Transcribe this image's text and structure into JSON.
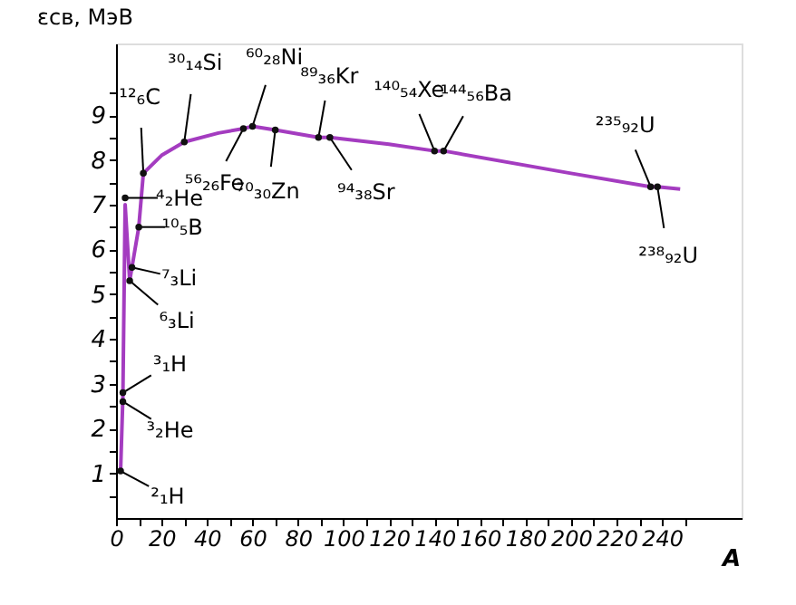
{
  "chart_data": {
    "type": "line",
    "xlabel": "A",
    "ylabel": "εсв, МэВ",
    "xlim": [
      0,
      275
    ],
    "ylim": [
      0,
      10.6
    ],
    "xticks": [
      0,
      20,
      40,
      60,
      80,
      100,
      120,
      140,
      160,
      180,
      200,
      220,
      240,
      {
        "value": 10,
        "label": null
      },
      {
        "value": 30,
        "label": null
      },
      {
        "value": 50,
        "label": null
      },
      {
        "value": 70,
        "label": null
      },
      {
        "value": 90,
        "label": null
      },
      {
        "value": 110,
        "label": null
      },
      {
        "value": 130,
        "label": null
      },
      {
        "value": 150,
        "label": null
      },
      {
        "value": 170,
        "label": null
      },
      {
        "value": 190,
        "label": null
      },
      {
        "value": 210,
        "label": null
      },
      {
        "value": 230,
        "label": null
      },
      {
        "value": 250,
        "label": null
      }
    ],
    "yticks": [
      1,
      2,
      3,
      4,
      5,
      6,
      7,
      8,
      9,
      {
        "value": 0.5,
        "label": null
      },
      {
        "value": 1.5,
        "label": null
      },
      {
        "value": 2.5,
        "label": null
      },
      {
        "value": 3.5,
        "label": null
      },
      {
        "value": 4.5,
        "label": null
      },
      {
        "value": 5.5,
        "label": null
      },
      {
        "value": 6.5,
        "label": null
      },
      {
        "value": 7.5,
        "label": null
      },
      {
        "value": 8.5,
        "label": null
      },
      {
        "value": 9.5,
        "label": null
      }
    ],
    "grid": false,
    "series": [
      {
        "color": "#a43cc0",
        "line_style": "solid",
        "marker": "none",
        "x": [
          2,
          3,
          4,
          6,
          7,
          10,
          12,
          20,
          30,
          45,
          56,
          60,
          70,
          89,
          94,
          120,
          140,
          144,
          200,
          235,
          238,
          248
        ],
        "values": [
          1.05,
          2.7,
          7.0,
          5.3,
          5.6,
          6.5,
          7.7,
          8.1,
          8.4,
          8.6,
          8.7,
          8.75,
          8.67,
          8.5,
          8.5,
          8.35,
          8.2,
          8.2,
          7.7,
          7.4,
          7.4,
          7.35
        ]
      },
      {
        "type": "scatter",
        "color": "#111111",
        "marker": "circle",
        "x": [
          2,
          3,
          3,
          4,
          6,
          7,
          10,
          12,
          30,
          56,
          60,
          70,
          89,
          94,
          140,
          144,
          235,
          238
        ],
        "values": [
          1.05,
          2.8,
          2.6,
          7.15,
          5.3,
          5.6,
          6.5,
          7.7,
          8.4,
          8.7,
          8.75,
          8.67,
          8.5,
          8.5,
          8.2,
          8.2,
          7.4,
          7.4
        ]
      }
    ],
    "annotations": [
      {
        "text": "²₁H",
        "x": 2,
        "y": 1.05
      },
      {
        "text": "³₁H",
        "x": 3,
        "y": 2.8
      },
      {
        "text": "³₂He",
        "x": 3,
        "y": 2.6
      },
      {
        "text": "⁴₂He",
        "x": 4,
        "y": 7.15
      },
      {
        "text": "⁶₃Li",
        "x": 6,
        "y": 5.3
      },
      {
        "text": "⁷₃Li",
        "x": 7,
        "y": 5.6
      },
      {
        "text": "¹⁰₅B",
        "x": 10,
        "y": 6.5
      },
      {
        "text": "¹²₆C",
        "x": 12,
        "y": 7.7
      },
      {
        "text": "³⁰₁₄Si",
        "x": 30,
        "y": 8.4
      },
      {
        "text": "⁵⁶₂₆Fe",
        "x": 56,
        "y": 8.7
      },
      {
        "text": "⁶⁰₂₈Ni",
        "x": 60,
        "y": 8.75
      },
      {
        "text": "⁷⁰₃₀Zn",
        "x": 70,
        "y": 8.67
      },
      {
        "text": "⁸⁹₃₆Kr",
        "x": 89,
        "y": 8.5
      },
      {
        "text": "⁹⁴₃₈Sr",
        "x": 94,
        "y": 8.5
      },
      {
        "text": "¹⁴⁰₅₄Xe",
        "x": 140,
        "y": 8.2
      },
      {
        "text": "¹⁴⁴₅₆Ba",
        "x": 144,
        "y": 8.2
      },
      {
        "text": "²³⁵₉₂U",
        "x": 235,
        "y": 7.4
      },
      {
        "text": "²³⁸₉₂U",
        "x": 238,
        "y": 7.4
      }
    ]
  }
}
